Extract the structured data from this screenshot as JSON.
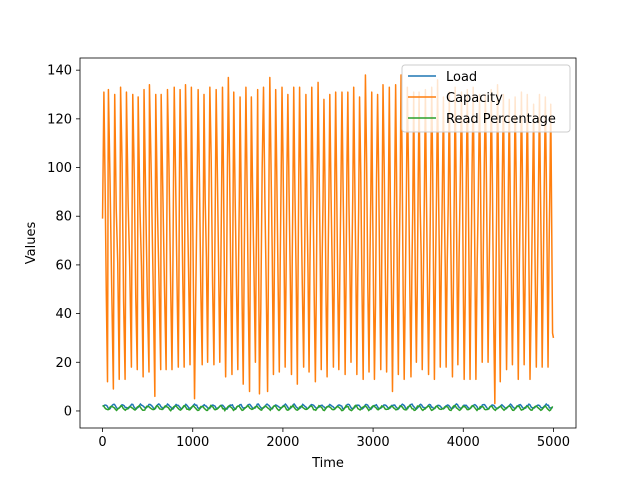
{
  "chart_data": {
    "type": "line",
    "title": "",
    "xlabel": "Time",
    "ylabel": "Values",
    "xlim": [
      -250,
      5250
    ],
    "ylim": [
      -7,
      145
    ],
    "xticks": [
      0,
      1000,
      2000,
      3000,
      4000,
      5000
    ],
    "yticks": [
      0,
      20,
      40,
      60,
      80,
      100,
      120,
      140
    ],
    "grid": false,
    "legend_position": "top-right",
    "n_points": 5000,
    "series": [
      {
        "name": "Load",
        "color": "#1f77b4",
        "pattern": "oscillating",
        "period": 100,
        "approx_range": [
          0.5,
          3
        ]
      },
      {
        "name": "Capacity",
        "color": "#ff7f0e",
        "pattern": "oscillating",
        "period": 100,
        "approx_range": [
          3,
          138
        ],
        "approx_peaks": [
          [
            15,
            131
          ],
          [
            65,
            132
          ],
          [
            135,
            130
          ],
          [
            200,
            133
          ],
          [
            265,
            131
          ],
          [
            335,
            130
          ],
          [
            395,
            129
          ],
          [
            460,
            132
          ],
          [
            520,
            134
          ],
          [
            590,
            130
          ],
          [
            650,
            130
          ],
          [
            720,
            132
          ],
          [
            795,
            133
          ],
          [
            860,
            132
          ],
          [
            920,
            134
          ],
          [
            985,
            133
          ],
          [
            1060,
            132
          ],
          [
            1125,
            130
          ],
          [
            1190,
            133
          ],
          [
            1260,
            132
          ],
          [
            1330,
            133
          ],
          [
            1395,
            137
          ],
          [
            1455,
            131
          ],
          [
            1525,
            129
          ],
          [
            1590,
            133
          ],
          [
            1650,
            129
          ],
          [
            1720,
            132
          ],
          [
            1785,
            133
          ],
          [
            1855,
            137
          ],
          [
            1920,
            132
          ],
          [
            1990,
            133
          ],
          [
            2055,
            130
          ],
          [
            2120,
            133
          ],
          [
            2185,
            133
          ],
          [
            2255,
            130
          ],
          [
            2320,
            133
          ],
          [
            2390,
            135
          ],
          [
            2455,
            128
          ],
          [
            2520,
            130
          ],
          [
            2585,
            131
          ],
          [
            2655,
            131
          ],
          [
            2720,
            131
          ],
          [
            2785,
            133
          ],
          [
            2850,
            129
          ],
          [
            2915,
            138
          ],
          [
            2985,
            131
          ],
          [
            3050,
            130
          ],
          [
            3110,
            134
          ],
          [
            3180,
            133
          ],
          [
            3250,
            134
          ],
          [
            3310,
            138
          ],
          [
            3380,
            133
          ],
          [
            3450,
            131
          ],
          [
            3510,
            131
          ],
          [
            3580,
            132
          ],
          [
            3650,
            133
          ],
          [
            3715,
            136
          ],
          [
            3780,
            129
          ],
          [
            3845,
            131
          ],
          [
            3910,
            133
          ],
          [
            3980,
            131
          ],
          [
            4045,
            132
          ],
          [
            4110,
            133
          ],
          [
            4180,
            130
          ],
          [
            4245,
            130
          ],
          [
            4310,
            132
          ],
          [
            4380,
            134
          ],
          [
            4445,
            130
          ],
          [
            4510,
            128
          ],
          [
            4575,
            129
          ],
          [
            4645,
            131
          ],
          [
            4710,
            130
          ],
          [
            4780,
            126
          ],
          [
            4845,
            130
          ],
          [
            4910,
            129
          ],
          [
            4970,
            126
          ]
        ],
        "approx_troughs": [
          [
            55,
            12
          ],
          [
            120,
            9
          ],
          [
            185,
            13
          ],
          [
            250,
            13
          ],
          [
            320,
            18
          ],
          [
            385,
            17
          ],
          [
            450,
            14
          ],
          [
            515,
            16
          ],
          [
            580,
            6
          ],
          [
            645,
            17
          ],
          [
            705,
            17
          ],
          [
            770,
            17
          ],
          [
            840,
            18
          ],
          [
            905,
            18
          ],
          [
            970,
            19
          ],
          [
            1020,
            5
          ],
          [
            1105,
            19
          ],
          [
            1165,
            20
          ],
          [
            1235,
            19
          ],
          [
            1300,
            20
          ],
          [
            1365,
            14
          ],
          [
            1435,
            15
          ],
          [
            1500,
            17
          ],
          [
            1560,
            11
          ],
          [
            1630,
            8
          ],
          [
            1695,
            20
          ],
          [
            1740,
            7
          ],
          [
            1830,
            8
          ],
          [
            1895,
            15
          ],
          [
            1960,
            16
          ],
          [
            2025,
            18
          ],
          [
            2095,
            15
          ],
          [
            2160,
            11
          ],
          [
            2230,
            18
          ],
          [
            2290,
            16
          ],
          [
            2360,
            12
          ],
          [
            2425,
            17
          ],
          [
            2490,
            14
          ],
          [
            2560,
            18
          ],
          [
            2620,
            17
          ],
          [
            2690,
            15
          ],
          [
            2755,
            20
          ],
          [
            2820,
            15
          ],
          [
            2890,
            13
          ],
          [
            2955,
            16
          ],
          [
            3015,
            13
          ],
          [
            3085,
            17
          ],
          [
            3150,
            16
          ],
          [
            3215,
            8
          ],
          [
            3280,
            15
          ],
          [
            3345,
            13
          ],
          [
            3420,
            14
          ],
          [
            3480,
            20
          ],
          [
            3545,
            17
          ],
          [
            3615,
            15
          ],
          [
            3680,
            13
          ],
          [
            3745,
            18
          ],
          [
            3810,
            18
          ],
          [
            3880,
            14
          ],
          [
            3940,
            19
          ],
          [
            4010,
            13
          ],
          [
            4075,
            13
          ],
          [
            4140,
            13
          ],
          [
            4210,
            20
          ],
          [
            4275,
            20
          ],
          [
            4350,
            3
          ],
          [
            4410,
            12
          ],
          [
            4480,
            17
          ],
          [
            4545,
            19
          ],
          [
            4610,
            13
          ],
          [
            4675,
            19
          ],
          [
            4740,
            13
          ],
          [
            4810,
            18
          ],
          [
            4875,
            18
          ],
          [
            4940,
            18
          ]
        ]
      },
      {
        "name": "Read Percentage",
        "color": "#2ca02c",
        "pattern": "oscillating",
        "period": 100,
        "approx_range": [
          0,
          2.5
        ]
      }
    ]
  }
}
